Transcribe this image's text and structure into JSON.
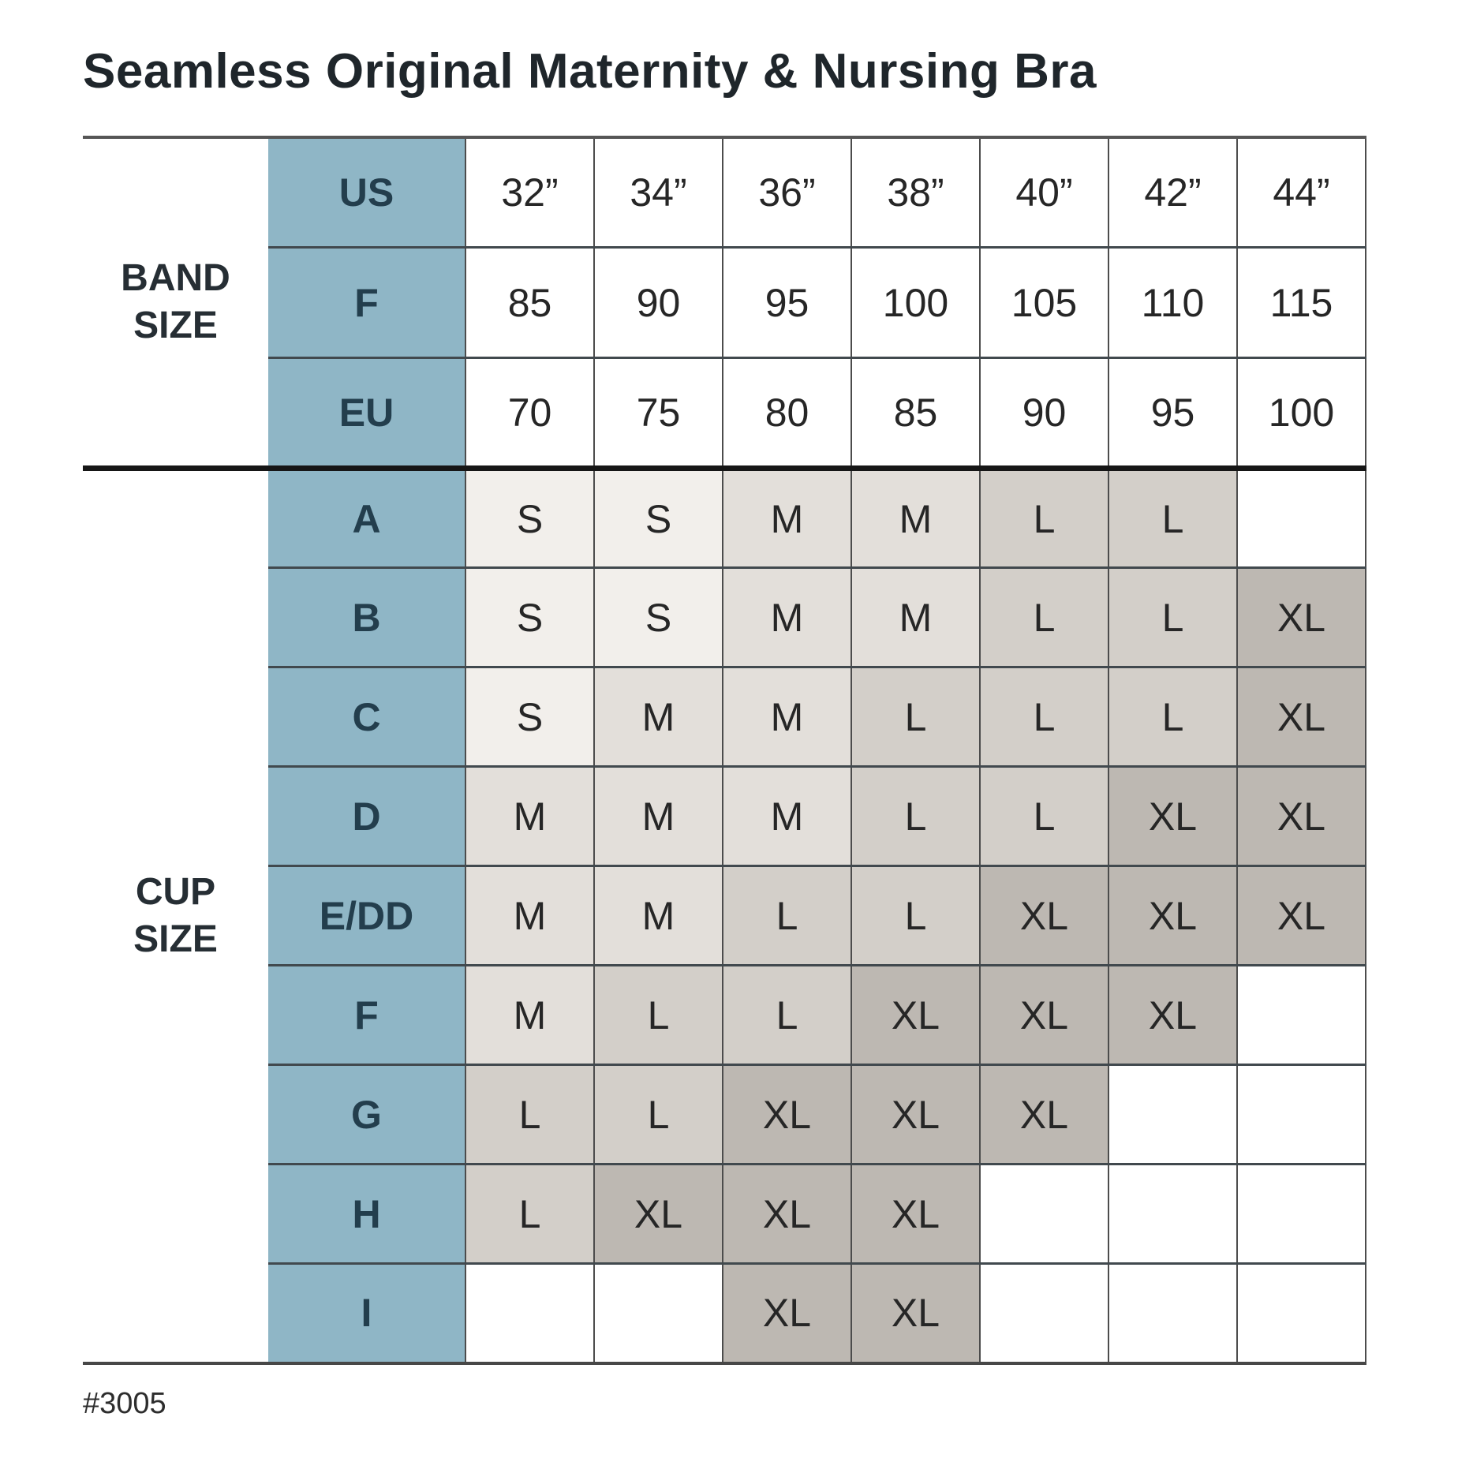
{
  "title": "Seamless Original Maternity & Nursing Bra",
  "footnote": "#3005",
  "chart_data": {
    "type": "table",
    "title": "Seamless Original Maternity & Nursing Bra",
    "columns_count": 7,
    "sections": [
      {
        "group_label": "BAND SIZE",
        "group_label_lines": [
          "BAND",
          "SIZE"
        ],
        "colored": false,
        "rows": [
          {
            "label": "US",
            "values": [
              "32”",
              "34”",
              "36”",
              "38”",
              "40”",
              "42”",
              "44”"
            ]
          },
          {
            "label": "F",
            "values": [
              "85",
              "90",
              "95",
              "100",
              "105",
              "110",
              "115"
            ]
          },
          {
            "label": "EU",
            "values": [
              "70",
              "75",
              "80",
              "85",
              "90",
              "95",
              "100"
            ]
          }
        ]
      },
      {
        "group_label": "CUP SIZE",
        "group_label_lines": [
          "CUP",
          "SIZE"
        ],
        "colored": true,
        "rows": [
          {
            "label": "A",
            "values": [
              "S",
              "S",
              "M",
              "M",
              "L",
              "L",
              ""
            ]
          },
          {
            "label": "B",
            "values": [
              "S",
              "S",
              "M",
              "M",
              "L",
              "L",
              "XL"
            ]
          },
          {
            "label": "C",
            "values": [
              "S",
              "M",
              "M",
              "L",
              "L",
              "L",
              "XL"
            ]
          },
          {
            "label": "D",
            "values": [
              "M",
              "M",
              "M",
              "L",
              "L",
              "XL",
              "XL"
            ]
          },
          {
            "label": "E/DD",
            "values": [
              "M",
              "M",
              "L",
              "L",
              "XL",
              "XL",
              "XL"
            ]
          },
          {
            "label": "F",
            "values": [
              "M",
              "L",
              "L",
              "XL",
              "XL",
              "XL",
              ""
            ]
          },
          {
            "label": "G",
            "values": [
              "L",
              "L",
              "XL",
              "XL",
              "XL",
              "",
              ""
            ]
          },
          {
            "label": "H",
            "values": [
              "L",
              "XL",
              "XL",
              "XL",
              "",
              "",
              ""
            ]
          },
          {
            "label": "I",
            "values": [
              "",
              "",
              "XL",
              "XL",
              "",
              "",
              ""
            ]
          }
        ]
      }
    ],
    "size_colors": {
      "S": "#f2efeb",
      "M": "#e3dfda",
      "L": "#d3cfc9",
      "XL": "#bdb8b2",
      "empty": "#ffffff"
    },
    "accent_blue": "#8fb6c6",
    "label_text_color": "#233e4d"
  }
}
